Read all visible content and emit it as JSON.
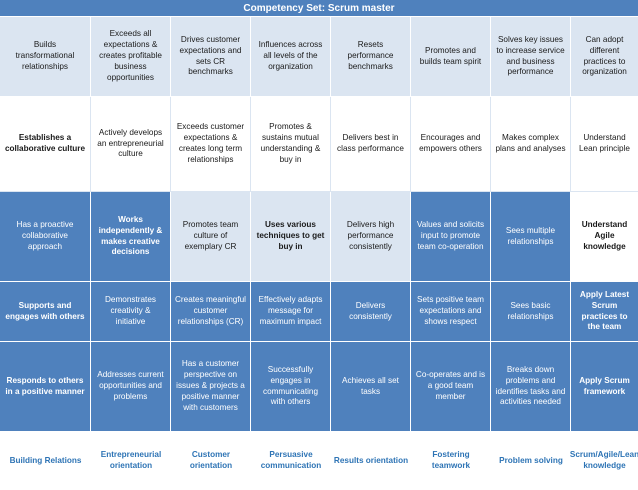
{
  "title": "Competency Set:  Scrum master",
  "rows": [
    {
      "style": "light",
      "cells": [
        "Builds transformational relationships",
        "Exceeds all expectations & creates profitable business opportunities",
        "Drives customer expectations and sets CR benchmarks",
        "Influences across all levels of the organization",
        "Resets performance benchmarks",
        "Promotes and builds team spirit",
        "Solves key issues to increase service and business performance",
        "Can adopt different practices to organization"
      ]
    },
    {
      "style": "white",
      "cells": [
        "Establishes a collaborative culture",
        "Actively develops an entrepreneurial culture",
        "Exceeds customer expectations & creates long term relationships",
        "Promotes & sustains mutual understanding & buy in",
        "Delivers best in class performance",
        "Encourages and empowers others",
        "Makes complex plans and analyses",
        "Understand Lean principle"
      ]
    },
    {
      "style": "blue",
      "cells": [
        "Has a proactive collaborative approach",
        "Works independently & makes creative decisions",
        "Promotes team culture of exemplary CR",
        "Uses various techniques to get buy in",
        "Delivers high performance consistently",
        "Values and solicits input to promote team co-operation",
        "Sees multiple relationships",
        "Understand Agile knowledge"
      ]
    },
    {
      "style": "blue",
      "cells": [
        "Supports and engages with others",
        "Demonstrates creativity & initiative",
        "Creates meaningful customer relationships (CR)",
        "Effectively adapts message for maximum impact",
        "Delivers consistently",
        "Sets positive team expectations and shows respect",
        "Sees basic relationships",
        "Apply Latest Scrum practices to the team"
      ]
    },
    {
      "style": "blue",
      "cells": [
        "Responds to others in a positive manner",
        "Addresses current opportunities and problems",
        "Has a customer perspective on issues & projects a positive manner with customers",
        "Successfully engages in communicating with others",
        "Achieves all set tasks",
        "Co-operates and is a good team member",
        "Breaks down problems and identifies tasks and activities needed",
        "Apply Scrum framework"
      ]
    }
  ],
  "footer": [
    "Building Relations",
    "Entrepreneurial orientation",
    "Customer orientation",
    "Persuasive communication",
    "Results orientation",
    "Fostering teamwork",
    "Problem solving",
    "Scrum/Agile/Lean knowledge"
  ],
  "colors": {
    "header_blue": "#4f81bd",
    "light_row": "#dbe5f1",
    "footer_text": "#2e74b5"
  }
}
